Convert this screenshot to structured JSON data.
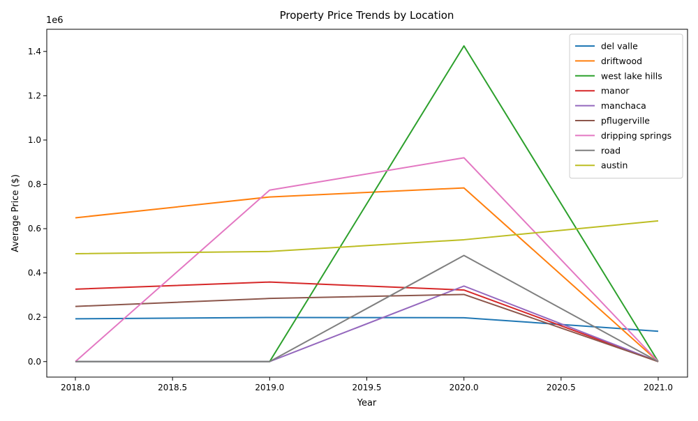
{
  "chart_data": {
    "type": "line",
    "title": "Property Price Trends by Location",
    "xlabel": "Year",
    "ylabel": "Average Price ($)",
    "y_offset_label": "1e6",
    "xlim": [
      1.985,
      2.0215
    ],
    "ylim": [
      -0.07,
      1.5
    ],
    "x_ticks": [
      2018.0,
      2018.5,
      2019.0,
      2019.5,
      2020.0,
      2020.5,
      2021.0
    ],
    "x_tick_labels": [
      "2018.0",
      "2018.5",
      "2019.0",
      "2019.5",
      "2020.0",
      "2020.5",
      "2021.0"
    ],
    "y_ticks": [
      0.0,
      0.2,
      0.4,
      0.6,
      0.8,
      1.0,
      1.2,
      1.4
    ],
    "y_tick_labels": [
      "0.0",
      "0.2",
      "0.4",
      "0.6",
      "0.8",
      "1.0",
      "1.2",
      "1.4"
    ],
    "grid": false,
    "legend_position": "top-right",
    "x": [
      2018,
      2019,
      2020,
      2021
    ],
    "series": [
      {
        "name": "del valle",
        "color": "#1f77b4",
        "values": [
          0.193,
          0.199,
          0.198,
          0.137
        ]
      },
      {
        "name": "driftwood",
        "color": "#ff7f0e",
        "values": [
          0.649,
          0.743,
          0.784,
          0.0
        ]
      },
      {
        "name": "west lake hills",
        "color": "#2ca02c",
        "values": [
          0.0,
          0.0,
          1.425,
          0.0
        ]
      },
      {
        "name": "manor",
        "color": "#d62728",
        "values": [
          0.327,
          0.359,
          0.323,
          0.0
        ]
      },
      {
        "name": "manchaca",
        "color": "#9467bd",
        "values": [
          0.0,
          0.0,
          0.341,
          0.0
        ]
      },
      {
        "name": "pflugerville",
        "color": "#8c564b",
        "values": [
          0.249,
          0.285,
          0.303,
          0.0
        ]
      },
      {
        "name": "dripping springs",
        "color": "#e377c2",
        "values": [
          0.0,
          0.774,
          0.92,
          0.0
        ]
      },
      {
        "name": "road",
        "color": "#7f7f7f",
        "values": [
          0.0,
          0.0,
          0.479,
          0.0
        ]
      },
      {
        "name": "austin",
        "color": "#bcbd22",
        "values": [
          0.487,
          0.497,
          0.55,
          0.635
        ]
      }
    ]
  }
}
